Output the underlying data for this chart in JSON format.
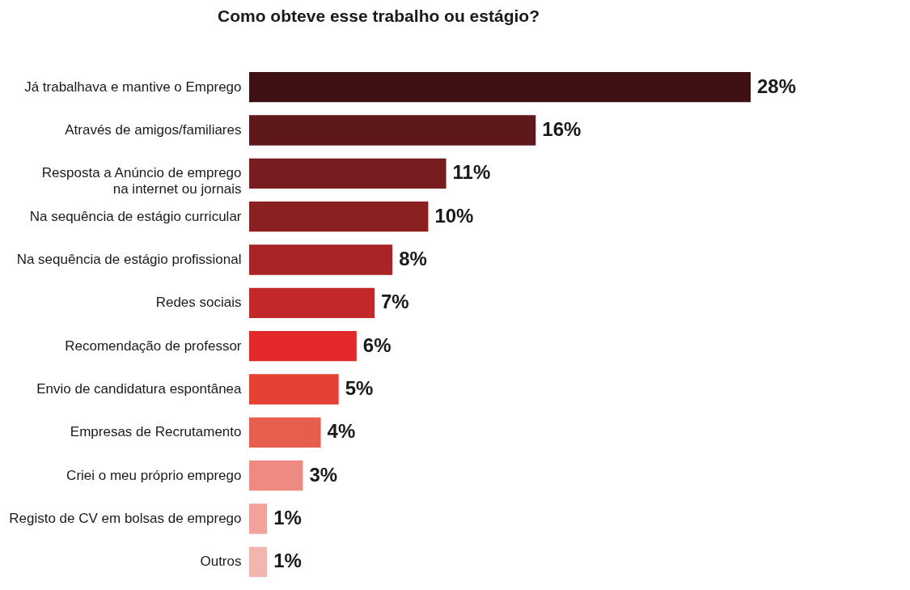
{
  "chart_data": {
    "type": "bar",
    "orientation": "horizontal",
    "title": "Como obteve esse trabalho ou estágio?",
    "categories": [
      "Já trabalhava e mantive o Emprego",
      "Através de amigos/familiares",
      "Resposta a Anúncio de emprego\nna internet ou jornais",
      "Na sequência de estágio curricular",
      "Na sequência de estágio profissional",
      "Redes sociais",
      "Recomendação de professor",
      "Envio de candidatura espontânea",
      "Empresas de Recrutamento",
      "Criei o meu próprio emprego",
      "Registo de CV em bolsas de emprego",
      "Outros"
    ],
    "values": [
      28,
      16,
      11,
      10,
      8,
      7,
      6,
      5,
      4,
      3,
      1,
      1
    ],
    "value_labels": [
      "28%",
      "16%",
      "11%",
      "10%",
      "8%",
      "7%",
      "6%",
      "5%",
      "4%",
      "3%",
      "1%",
      "1%"
    ],
    "colors": [
      "#3f1014",
      "#5e181a",
      "#761e1f",
      "#8b2020",
      "#a82426",
      "#c2272a",
      "#e2282a",
      "#e54135",
      "#e85e4d",
      "#ee8a80",
      "#f2a19b",
      "#f4b5b1"
    ],
    "legend": false,
    "grid": false
  }
}
